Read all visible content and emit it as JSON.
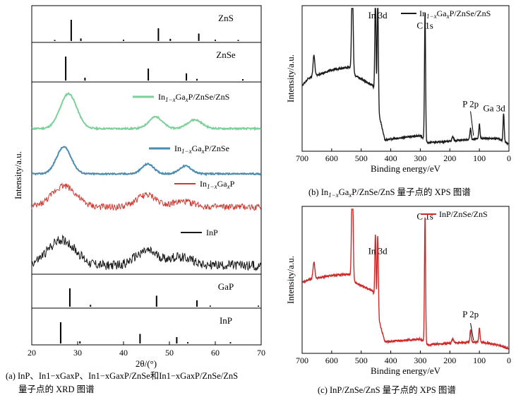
{
  "colors": {
    "green": "#7ed09a",
    "blue": "#4a8db0",
    "red": "#d03a32",
    "black": "#1a1a1a",
    "xps_b": "#1a1a1a",
    "xps_c": "#cc2a2a"
  },
  "chart_data": [
    {
      "id": "a",
      "type": "line",
      "xlabel": "2θ/(°)",
      "ylabel": "Intensity/a.u.",
      "xlim": [
        20,
        70
      ],
      "x_ticks": [
        "20",
        "30",
        "40",
        "50",
        "60",
        "70"
      ],
      "caption_line1": "(a) InP、In1−xGaxP、In1−xGaxP/ZnSe和In1−xGaxP/ZnSe/ZnS",
      "caption_line2": "量子点的 XRD 图谱",
      "reference_panels": [
        {
          "name": "ZnS",
          "positions": [
            25.0,
            28.6,
            30.7,
            40.0,
            47.6,
            50.2,
            56.4,
            60.0,
            65.0
          ],
          "heights": [
            0.05,
            1.0,
            0.12,
            0.06,
            0.6,
            0.1,
            0.35,
            0.06,
            0.05
          ]
        },
        {
          "name": "ZnSe",
          "positions": [
            27.4,
            31.6,
            45.4,
            53.7,
            56.0,
            66.0
          ],
          "heights": [
            1.0,
            0.12,
            0.5,
            0.3,
            0.07,
            0.06
          ]
        },
        {
          "name": "GaP",
          "positions": [
            28.3,
            32.8,
            47.2,
            56.0,
            58.9,
            69.4
          ],
          "heights": [
            1.0,
            0.1,
            0.6,
            0.35,
            0.06,
            0.06
          ]
        },
        {
          "name": "InP",
          "positions": [
            26.3,
            30.5,
            43.6,
            51.6,
            54.0,
            63.3
          ],
          "heights": [
            1.0,
            0.1,
            0.45,
            0.3,
            0.06,
            0.06
          ]
        }
      ],
      "series": [
        {
          "name": "In1−xGaxP/ZnSe/ZnS",
          "color_key": "green",
          "legend_sub": "1−x",
          "legend_main": "In",
          "legend_tail": "Ga",
          "legend_x": "x",
          "legend_end": "P/ZnSe/ZnS",
          "peaks": [
            [
              28.0,
              0.95,
              1.8
            ],
            [
              47.0,
              0.32,
              1.5
            ],
            [
              55.5,
              0.24,
              1.6
            ]
          ],
          "noise": 0.02,
          "baseline": 0.0
        },
        {
          "name": "In1−xGaxP/ZnSe",
          "color_key": "blue",
          "legend_main": "In",
          "legend_sub": "1−x",
          "legend_tail": "Ga",
          "legend_x": "x",
          "legend_end": "P/ZnSe",
          "peaks": [
            [
              27.0,
              0.95,
              1.6
            ],
            [
              45.3,
              0.35,
              1.3
            ],
            [
              53.5,
              0.28,
              1.3
            ]
          ],
          "noise": 0.025,
          "baseline": 0.0
        },
        {
          "name": "In1−xGaxP",
          "color_key": "red",
          "legend_main": "In",
          "legend_sub": "1−x",
          "legend_tail": "Ga",
          "legend_x": "x",
          "legend_end": "P",
          "peaks": [
            [
              27.0,
              0.8,
              2.6
            ],
            [
              45.0,
              0.45,
              2.2
            ],
            [
              53.0,
              0.2,
              2.5
            ]
          ],
          "noise": 0.12,
          "baseline": 0.05
        },
        {
          "name": "InP",
          "color_key": "black",
          "legend_main": "InP",
          "legend_sub": "",
          "legend_tail": "",
          "legend_x": "",
          "legend_end": "",
          "peaks": [
            [
              26.5,
              0.75,
              3.0
            ],
            [
              45.0,
              0.42,
              2.4
            ],
            [
              52.5,
              0.25,
              2.6
            ]
          ],
          "noise": 0.14,
          "baseline": 0.05
        }
      ]
    },
    {
      "id": "b",
      "type": "line",
      "xlabel": "Binding energy/eV",
      "ylabel": "Intensity/a.u.",
      "xlim": [
        700,
        0
      ],
      "x_ticks": [
        "700",
        "600",
        "500",
        "400",
        "300",
        "200",
        "100",
        "0"
      ],
      "legend_main": "In",
      "legend_sub": "1−x",
      "legend_tail": "Ga",
      "legend_x": "x",
      "legend_end": "P/ZnSe/ZnS",
      "annotations": [
        {
          "text": "In 3d",
          "x": 444,
          "y": 0.92
        },
        {
          "text": "C 1s",
          "x": 284,
          "y": 0.85
        },
        {
          "text": "P 2p",
          "x": 130,
          "y": 0.3
        },
        {
          "text": "Ga 3d",
          "x": 50,
          "y": 0.27
        }
      ],
      "caption_main": "(b) In",
      "caption_sub": "1−x",
      "caption_mid": "Ga",
      "caption_x": "x",
      "caption_end": "P/ZnSe/ZnS 量子点的 XPS 图谱",
      "peaks": [
        [
          530,
          0.72,
          2.5
        ],
        [
          444,
          0.78,
          2.0
        ],
        [
          452,
          0.7,
          2.0
        ],
        [
          284,
          0.9,
          1.8
        ],
        [
          660,
          0.15,
          3.0
        ],
        [
          130,
          0.08,
          2.0
        ],
        [
          100,
          0.1,
          2.0
        ],
        [
          18,
          0.2,
          2.0
        ],
        [
          190,
          0.03,
          3.0
        ]
      ],
      "baseline_segments": [
        [
          700,
          0.45
        ],
        [
          680,
          0.5
        ],
        [
          600,
          0.56
        ],
        [
          540,
          0.58
        ],
        [
          520,
          0.52
        ],
        [
          460,
          0.45
        ],
        [
          440,
          0.25
        ],
        [
          420,
          0.07
        ],
        [
          300,
          0.1
        ],
        [
          275,
          0.05
        ],
        [
          200,
          0.06
        ],
        [
          100,
          0.08
        ],
        [
          40,
          0.08
        ],
        [
          10,
          0.05
        ],
        [
          0,
          0.04
        ]
      ]
    },
    {
      "id": "c",
      "type": "line",
      "xlabel": "Binding energy/eV",
      "ylabel": "Intensity/a.u.",
      "xlim": [
        700,
        0
      ],
      "x_ticks": [
        "700",
        "600",
        "500",
        "400",
        "300",
        "200",
        "100",
        "0"
      ],
      "legend_text": "InP/ZnSe/ZnS",
      "annotations": [
        {
          "text": "In 3d",
          "x": 444,
          "y": 0.68
        },
        {
          "text": "C 1s",
          "x": 284,
          "y": 0.92
        },
        {
          "text": "P 2p",
          "x": 130,
          "y": 0.24
        }
      ],
      "caption": "(c) InP/ZnSe/ZnS 量子点的 XPS 图谱",
      "peaks": [
        [
          530,
          0.82,
          2.5
        ],
        [
          444,
          0.55,
          2.0
        ],
        [
          452,
          0.48,
          2.0
        ],
        [
          284,
          0.88,
          1.8
        ],
        [
          660,
          0.12,
          3.0
        ],
        [
          130,
          0.09,
          2.0
        ],
        [
          100,
          0.1,
          2.0
        ],
        [
          190,
          0.03,
          3.0
        ]
      ],
      "baseline_segments": [
        [
          700,
          0.48
        ],
        [
          680,
          0.5
        ],
        [
          600,
          0.53
        ],
        [
          540,
          0.54
        ],
        [
          520,
          0.48
        ],
        [
          460,
          0.42
        ],
        [
          440,
          0.22
        ],
        [
          420,
          0.07
        ],
        [
          300,
          0.09
        ],
        [
          275,
          0.05
        ],
        [
          200,
          0.06
        ],
        [
          100,
          0.07
        ],
        [
          40,
          0.05
        ],
        [
          10,
          0.03
        ],
        [
          0,
          0.02
        ]
      ]
    }
  ]
}
